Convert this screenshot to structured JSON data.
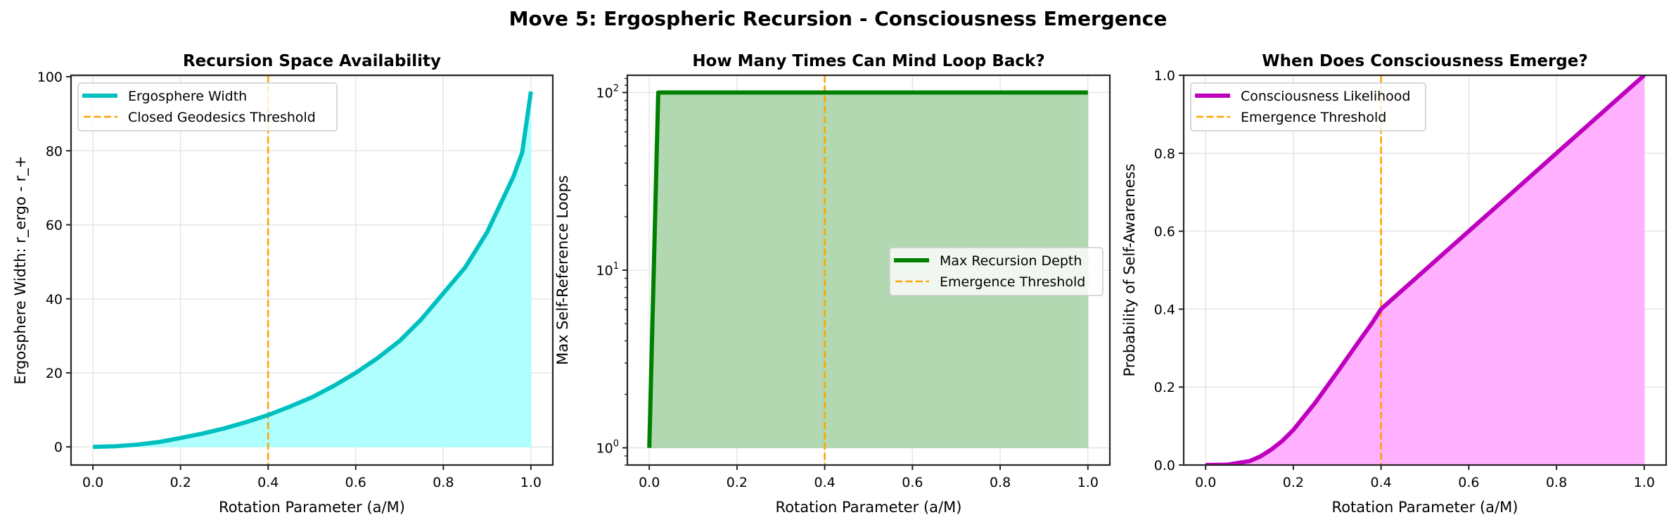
{
  "figure": {
    "suptitle": "Move 5: Ergospheric Recursion - Consciousness Emergence",
    "colors": {
      "cyan": "#00bfbf",
      "cyan_fill": "#aefffe",
      "green": "#008000",
      "green_fill": "#b2d8b2",
      "magenta": "#bf00bf",
      "magenta_fill": "#ffb0ff",
      "threshold": "#ffa500",
      "grid": "#e6e6e6",
      "spine": "#262626"
    }
  },
  "chart_data": [
    {
      "type": "area",
      "title": "Recursion Space Availability",
      "xlabel": "Rotation Parameter (a/M)",
      "ylabel": "Ergosphere Width: r_ergo - r_+",
      "xlim": [
        -0.05,
        1.05
      ],
      "ylim": [
        -4.9,
        100.4
      ],
      "xticks": [
        0.0,
        0.2,
        0.4,
        0.6,
        0.8,
        1.0
      ],
      "xtick_labels": [
        "0.0",
        "0.2",
        "0.4",
        "0.6",
        "0.8",
        "1.0"
      ],
      "yticks": [
        0,
        20,
        40,
        60,
        80,
        100
      ],
      "ytick_labels": [
        "0",
        "20",
        "40",
        "60",
        "80",
        "100"
      ],
      "yscale": "linear",
      "grid": true,
      "legend_position": "upper left",
      "series": [
        {
          "name": "Ergosphere Width",
          "style": "line",
          "color": "#00bfbf",
          "fill": "#aefffe",
          "x": [
            0.0,
            0.05,
            0.1,
            0.15,
            0.2,
            0.25,
            0.3,
            0.35,
            0.4,
            0.45,
            0.5,
            0.55,
            0.6,
            0.65,
            0.7,
            0.75,
            0.8,
            0.85,
            0.9,
            0.94,
            0.96,
            0.98,
            1.0
          ],
          "values": [
            0.0,
            0.15,
            0.6,
            1.3,
            2.4,
            3.6,
            5.0,
            6.7,
            8.6,
            10.9,
            13.4,
            16.5,
            20.0,
            24.0,
            28.6,
            34.5,
            41.5,
            48.5,
            58.0,
            68.0,
            73.0,
            79.5,
            96.0
          ]
        },
        {
          "name": "Closed Geodesics Threshold",
          "style": "dashed-vline",
          "color": "#ffa500",
          "x": 0.4
        }
      ]
    },
    {
      "type": "area",
      "title": "How Many Times Can Mind Loop Back?",
      "xlabel": "Rotation Parameter (a/M)",
      "ylabel": "Max Self-Reference Loops",
      "xlim": [
        -0.05,
        1.05
      ],
      "ylim": [
        0.8,
        125
      ],
      "yscale": "log",
      "xticks": [
        0.0,
        0.2,
        0.4,
        0.6,
        0.8,
        1.0
      ],
      "xtick_labels": [
        "0.0",
        "0.2",
        "0.4",
        "0.6",
        "0.8",
        "1.0"
      ],
      "yticks": [
        1,
        10,
        100
      ],
      "ytick_labels": [
        "10^0",
        "10^1",
        "10^2"
      ],
      "grid": true,
      "legend_position": "center right",
      "series": [
        {
          "name": "Max Recursion Depth",
          "style": "line",
          "color": "#008000",
          "fill": "#b2d8b2",
          "x": [
            0.0,
            0.0204,
            0.2,
            0.4,
            0.6,
            0.8,
            1.0
          ],
          "values": [
            1,
            100,
            100,
            100,
            100,
            100,
            100
          ]
        },
        {
          "name": "Emergence Threshold",
          "style": "dashed-vline",
          "color": "#ffa500",
          "x": 0.4
        }
      ]
    },
    {
      "type": "area",
      "title": "When Does Consciousness Emerge?",
      "xlabel": "Rotation Parameter (a/M)",
      "ylabel": "Probability of Self-Awareness",
      "xlim": [
        -0.05,
        1.05
      ],
      "ylim": [
        0.0,
        1.0
      ],
      "yscale": "linear",
      "xticks": [
        0.0,
        0.2,
        0.4,
        0.6,
        0.8,
        1.0
      ],
      "xtick_labels": [
        "0.0",
        "0.2",
        "0.4",
        "0.6",
        "0.8",
        "1.0"
      ],
      "yticks": [
        0.0,
        0.2,
        0.4,
        0.6,
        0.8,
        1.0
      ],
      "ytick_labels": [
        "0.0",
        "0.2",
        "0.4",
        "0.6",
        "0.8",
        "1.0"
      ],
      "grid": true,
      "legend_position": "upper left",
      "series": [
        {
          "name": "Consciousness Likelihood",
          "style": "line",
          "color": "#bf00bf",
          "fill": "#ffb0ff",
          "x": [
            0.0,
            0.05,
            0.1,
            0.125,
            0.15,
            0.175,
            0.2,
            0.25,
            0.3,
            0.35,
            0.38,
            0.4,
            0.5,
            0.6,
            0.7,
            0.8,
            0.9,
            1.0
          ],
          "values": [
            0.0,
            0.001,
            0.01,
            0.022,
            0.04,
            0.062,
            0.09,
            0.16,
            0.238,
            0.318,
            0.365,
            0.4,
            0.5,
            0.6,
            0.7,
            0.8,
            0.9,
            1.0
          ]
        },
        {
          "name": "Emergence Threshold",
          "style": "dashed-vline",
          "color": "#ffa500",
          "x": 0.4
        }
      ]
    }
  ]
}
